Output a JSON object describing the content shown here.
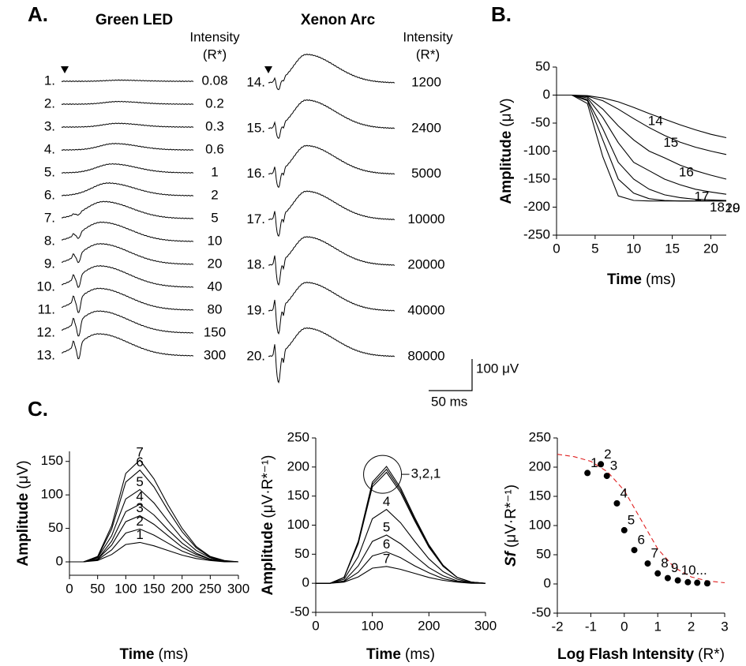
{
  "panel_labels": {
    "a": "A.",
    "b": "B.",
    "c": "C."
  },
  "panel_a": {
    "green": {
      "title": "Green LED",
      "intensity_header": [
        "Intensity",
        "(R*)"
      ],
      "rows": [
        {
          "label": "1.",
          "intensity": 0.08
        },
        {
          "label": "2.",
          "intensity": 0.2
        },
        {
          "label": "3.",
          "intensity": 0.3
        },
        {
          "label": "4.",
          "intensity": 0.6
        },
        {
          "label": "5.",
          "intensity": 1
        },
        {
          "label": "6.",
          "intensity": 2
        },
        {
          "label": "7.",
          "intensity": 5
        },
        {
          "label": "8.",
          "intensity": 10
        },
        {
          "label": "9.",
          "intensity": 20
        },
        {
          "label": "10.",
          "intensity": 40
        },
        {
          "label": "11.",
          "intensity": 80
        },
        {
          "label": "12.",
          "intensity": 150
        },
        {
          "label": "13.",
          "intensity": 300
        }
      ]
    },
    "xenon": {
      "title": "Xenon Arc",
      "intensity_header": [
        "Intensity",
        "(R*)"
      ],
      "rows": [
        {
          "label": "14.",
          "intensity": 1200
        },
        {
          "label": "15.",
          "intensity": 2400
        },
        {
          "label": "16.",
          "intensity": 5000
        },
        {
          "label": "17.",
          "intensity": 10000
        },
        {
          "label": "18.",
          "intensity": 20000
        },
        {
          "label": "19.",
          "intensity": 40000
        },
        {
          "label": "20.",
          "intensity": 80000
        }
      ]
    },
    "scale_bar": {
      "y": "100 μV",
      "x": "50 ms"
    }
  },
  "chart_data": [
    {
      "type": "line",
      "xlabel": {
        "bold": "Time",
        "normal": "(ms)"
      },
      "ylabel": {
        "bold": "Amplitude",
        "normal": "(μV)"
      },
      "xlim": [
        0,
        22
      ],
      "xticks": [
        0,
        5,
        10,
        15,
        20
      ],
      "ylim": [
        -250,
        50
      ],
      "yticks": [
        -250,
        -200,
        -150,
        -100,
        -50,
        0,
        50
      ],
      "x": [
        0,
        2,
        4,
        6,
        8,
        10,
        12,
        14,
        16,
        18,
        20,
        22
      ],
      "series": [
        {
          "name": "14",
          "color": "#000000",
          "values": [
            0,
            0,
            -1,
            -5,
            -12,
            -22,
            -33,
            -43,
            -53,
            -62,
            -70,
            -76
          ]
        },
        {
          "name": "15",
          "color": "#000000",
          "values": [
            0,
            0,
            -2,
            -10,
            -25,
            -42,
            -58,
            -72,
            -84,
            -93,
            -100,
            -106
          ]
        },
        {
          "name": "16",
          "color": "#000000",
          "values": [
            0,
            0,
            -3,
            -25,
            -55,
            -80,
            -100,
            -112,
            -125,
            -135,
            -143,
            -150
          ]
        },
        {
          "name": "17",
          "color": "#000000",
          "values": [
            0,
            0,
            -5,
            -40,
            -85,
            -120,
            -135,
            -150,
            -160,
            -168,
            -173,
            -177
          ]
        },
        {
          "name": "18",
          "color": "#000000",
          "values": [
            0,
            0,
            -8,
            -60,
            -120,
            -150,
            -168,
            -178,
            -183,
            -186,
            -187,
            -188
          ]
        },
        {
          "name": "19",
          "color": "#000000",
          "values": [
            0,
            0,
            -10,
            -80,
            -150,
            -175,
            -185,
            -188,
            -189,
            -189,
            -189,
            -189
          ]
        },
        {
          "name": "20",
          "color": "#000000",
          "values": [
            0,
            0,
            -15,
            -110,
            -180,
            -188,
            -189,
            -189,
            -189,
            -189,
            -189,
            -189
          ]
        }
      ]
    },
    {
      "type": "line",
      "xlabel": {
        "bold": "Time",
        "normal": "(ms)"
      },
      "ylabel": {
        "bold": "Amplitude",
        "normal": "(μV)"
      },
      "xlim": [
        0,
        300
      ],
      "xticks": [
        0,
        50,
        100,
        150,
        200,
        250,
        300
      ],
      "ylim": [
        -20,
        165
      ],
      "yticks": [
        0,
        50,
        100,
        150
      ],
      "x": [
        0,
        25,
        50,
        75,
        100,
        125,
        150,
        175,
        200,
        225,
        250,
        275,
        300
      ],
      "series": [
        {
          "name": "1",
          "color": "#000000",
          "values": [
            0,
            0,
            2,
            11,
            26,
            29,
            24,
            17,
            10,
            5,
            2,
            0,
            0
          ]
        },
        {
          "name": "2",
          "color": "#000000",
          "values": [
            0,
            0,
            3,
            18,
            43,
            49,
            40,
            28,
            16,
            8,
            3,
            1,
            0
          ]
        },
        {
          "name": "3",
          "color": "#000000",
          "values": [
            0,
            0,
            4,
            25,
            60,
            69,
            56,
            39,
            22,
            11,
            4,
            1,
            0
          ]
        },
        {
          "name": "4",
          "color": "#000000",
          "values": [
            0,
            0,
            4,
            31,
            75,
            86,
            70,
            48,
            28,
            13,
            4,
            1,
            0
          ]
        },
        {
          "name": "5",
          "color": "#000000",
          "values": [
            0,
            0,
            6,
            39,
            94,
            108,
            88,
            61,
            35,
            17,
            6,
            1,
            0
          ]
        },
        {
          "name": "6",
          "color": "#000000",
          "values": [
            0,
            0,
            7,
            49,
            119,
            137,
            112,
            77,
            45,
            21,
            7,
            1,
            0
          ]
        },
        {
          "name": "7",
          "color": "#000000",
          "values": [
            0,
            0,
            8,
            54,
            132,
            152,
            124,
            85,
            50,
            23,
            8,
            2,
            0
          ]
        }
      ]
    },
    {
      "type": "line",
      "xlabel": {
        "bold": "Time",
        "normal": "(ms)"
      },
      "ylabel": {
        "bold": "Amplitude",
        "normal": "(μV·R*⁻¹)"
      },
      "xlim": [
        0,
        300
      ],
      "xticks": [
        0,
        100,
        200,
        300
      ],
      "ylim": [
        -50,
        250
      ],
      "yticks": [
        -50,
        0,
        50,
        100,
        150,
        200,
        250
      ],
      "x": [
        0,
        25,
        50,
        75,
        100,
        125,
        150,
        175,
        200,
        225,
        250,
        275,
        300
      ],
      "annotation": "3,2,1",
      "series": [
        {
          "color": "#000000",
          "values": [
            0,
            0,
            10,
            72,
            174,
            201,
            164,
            113,
            66,
            31,
            10,
            2,
            0
          ]
        },
        {
          "color": "#000000",
          "values": [
            0,
            0,
            10,
            70,
            170,
            196,
            160,
            110,
            64,
            30,
            10,
            2,
            0
          ]
        },
        {
          "color": "#000000",
          "values": [
            0,
            0,
            10,
            68,
            166,
            191,
            156,
            107,
            62,
            29,
            10,
            2,
            0
          ]
        },
        {
          "name": "4",
          "color": "#000000",
          "values": [
            0,
            0,
            7,
            46,
            111,
            127,
            104,
            72,
            42,
            20,
            7,
            1,
            0
          ]
        },
        {
          "name": "5",
          "color": "#000000",
          "values": [
            0,
            0,
            4,
            30,
            72,
            83,
            68,
            47,
            27,
            13,
            4,
            1,
            0
          ]
        },
        {
          "name": "6",
          "color": "#000000",
          "values": [
            0,
            0,
            3,
            19,
            47,
            54,
            44,
            30,
            18,
            8,
            3,
            1,
            0
          ]
        },
        {
          "name": "7",
          "color": "#000000",
          "values": [
            0,
            0,
            2,
            11,
            26,
            29,
            24,
            17,
            10,
            5,
            2,
            0,
            0
          ]
        }
      ]
    },
    {
      "type": "scatter",
      "xlabel": {
        "bold": "Log Flash Intensity",
        "normal": "(R*)"
      },
      "ylabel": {
        "bold": "Sf",
        "normal": "(μV·R*⁻¹)"
      },
      "xlim": [
        -2,
        3
      ],
      "xticks": [
        -2,
        -1,
        0,
        1,
        2,
        3
      ],
      "ylim": [
        -50,
        250
      ],
      "yticks": [
        -50,
        0,
        50,
        100,
        150,
        200,
        250
      ],
      "x": [
        -1.1,
        -0.7,
        -0.52,
        -0.22,
        0,
        0.3,
        0.7,
        1,
        1.3,
        1.6,
        1.9,
        2.18,
        2.48
      ],
      "values": [
        190,
        205,
        185,
        138,
        92,
        58,
        35,
        18,
        10,
        6,
        3,
        2,
        1
      ],
      "point_labels": [
        "1",
        "2",
        "3",
        "4",
        "5",
        "6",
        "7",
        "8",
        "9",
        "10...",
        null,
        null,
        null
      ],
      "color": "#000000",
      "fit": {
        "color": "#e02020",
        "x": [
          -2,
          -1.5,
          -1,
          -0.5,
          0,
          0.5,
          1,
          1.5,
          2,
          2.5,
          3
        ],
        "values": [
          222,
          218,
          210,
          192,
          160,
          110,
          60,
          28,
          12,
          5,
          2
        ]
      }
    }
  ]
}
